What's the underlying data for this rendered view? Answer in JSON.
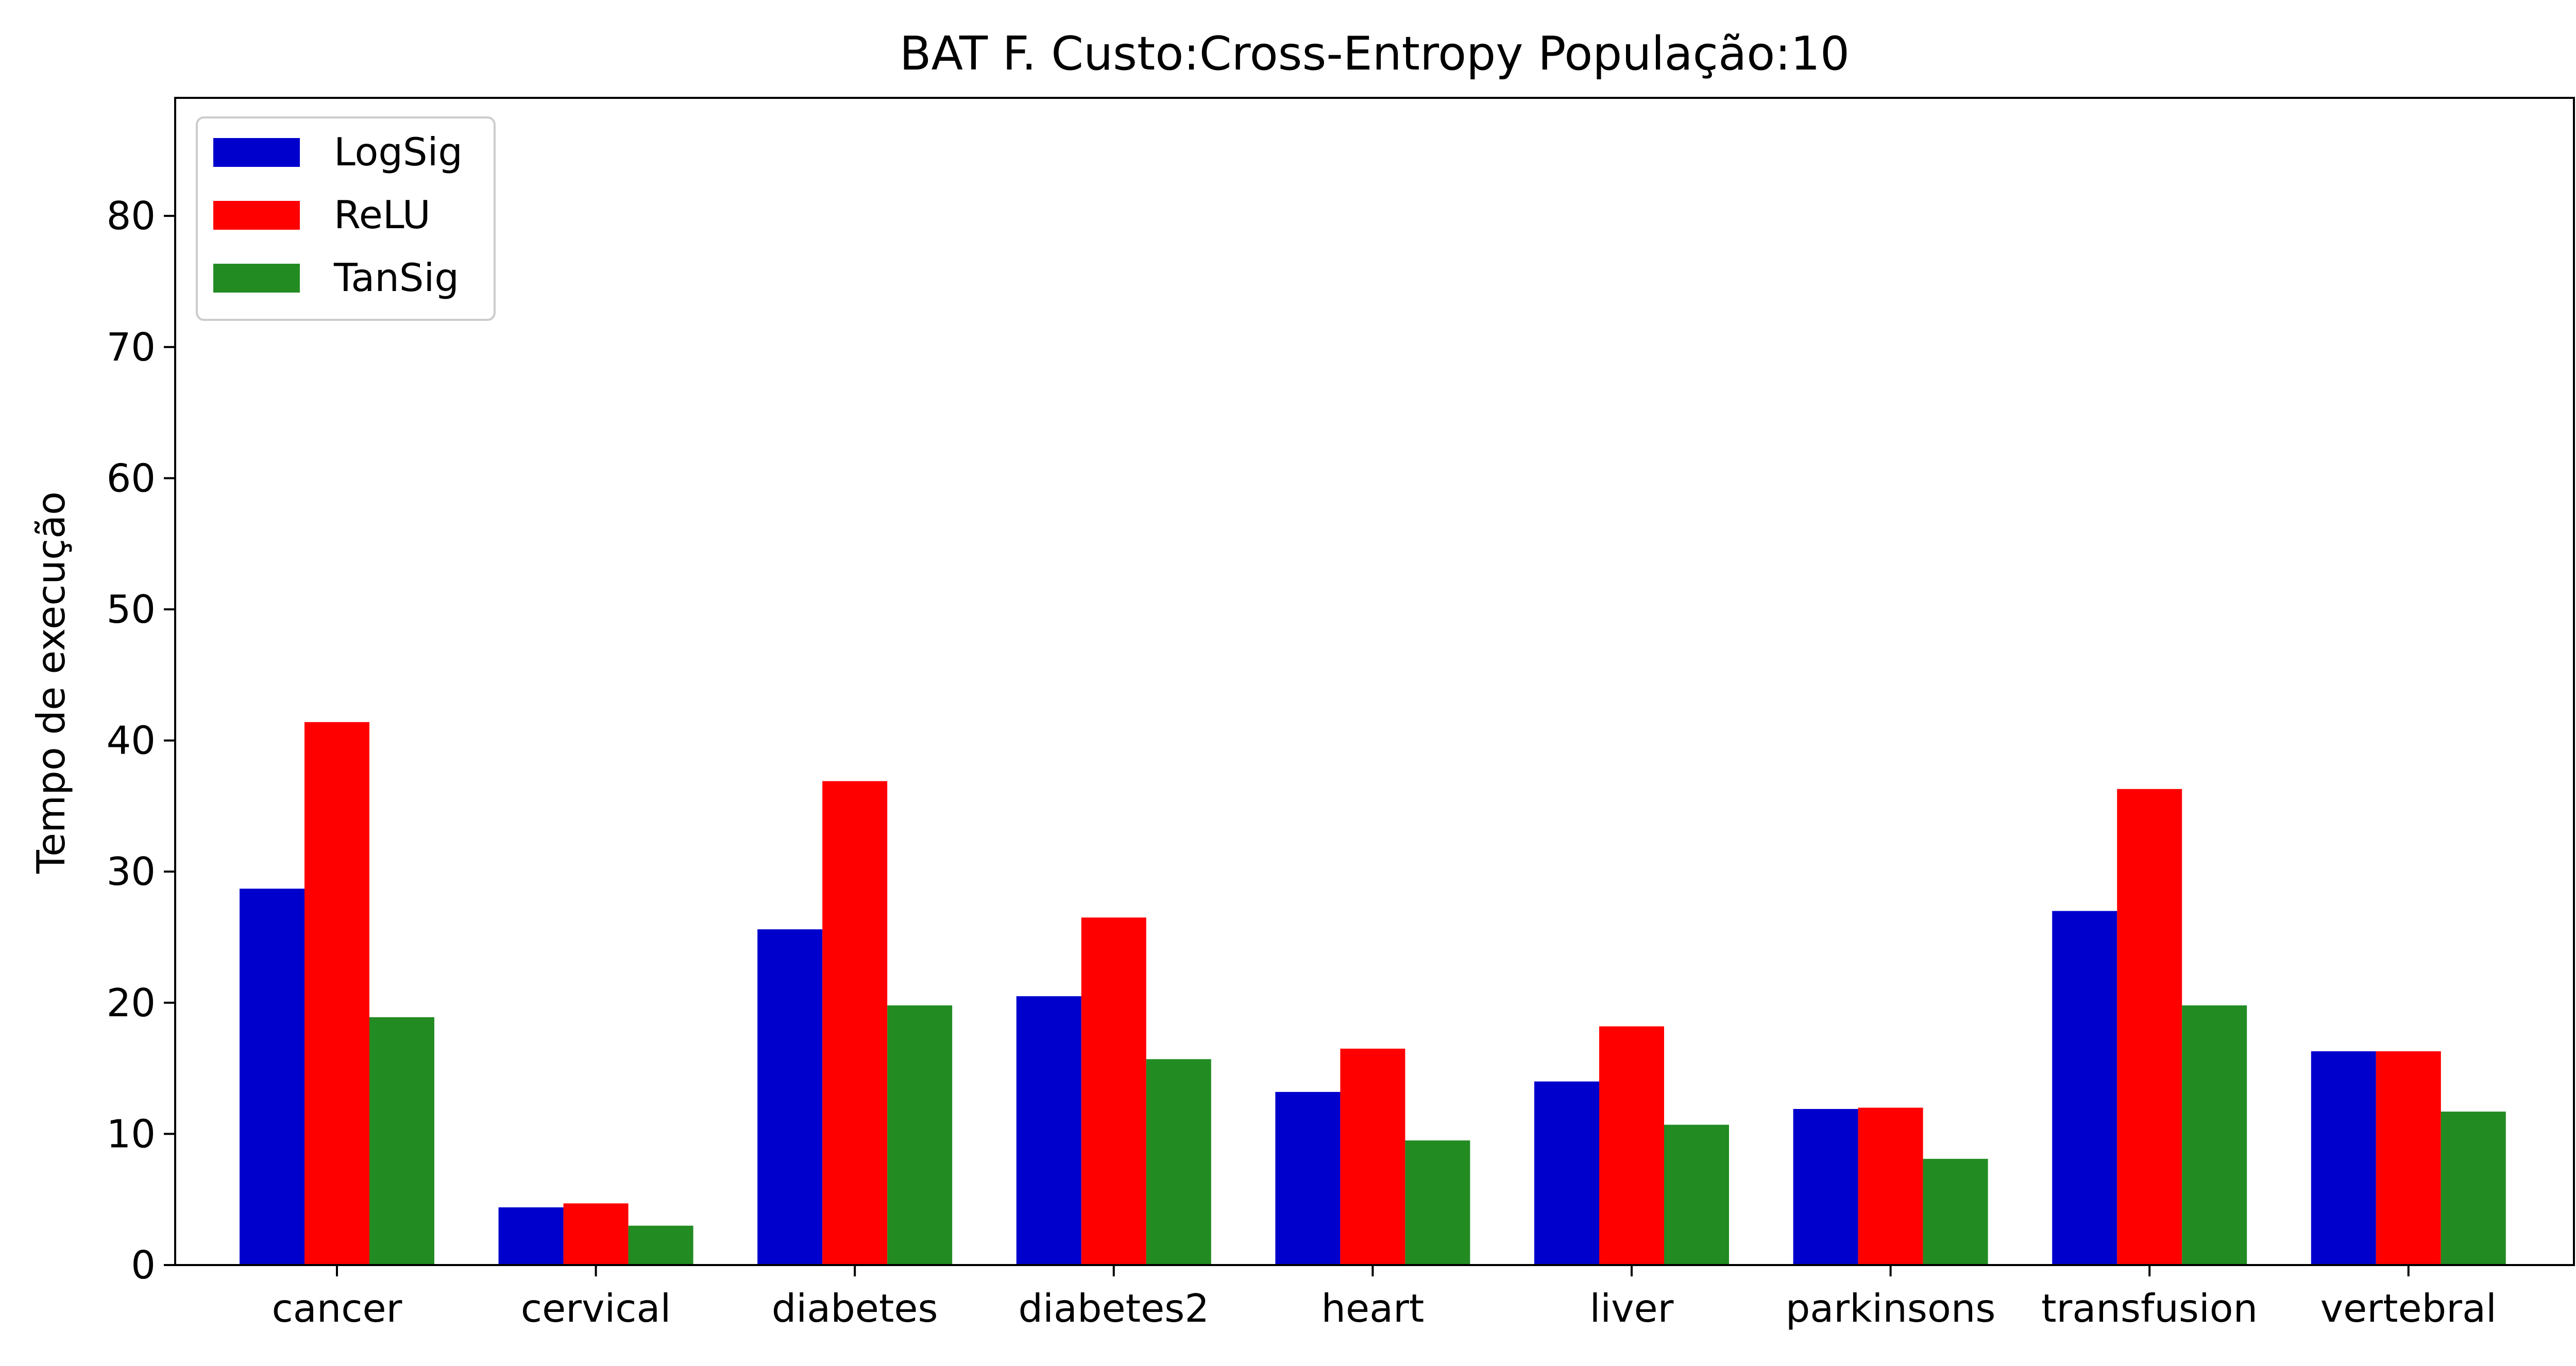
{
  "chart_data": {
    "type": "bar",
    "title": "BAT F. Custo:Cross-Entropy População:10",
    "xlabel": "",
    "ylabel": "Tempo de execução",
    "categories": [
      "cancer",
      "cervical",
      "diabetes",
      "diabetes2",
      "heart",
      "liver",
      "parkinsons",
      "transfusion",
      "vertebral"
    ],
    "series": [
      {
        "name": "LogSig",
        "color": "#0000CD",
        "values": [
          28.7,
          4.4,
          25.6,
          20.5,
          13.2,
          14.0,
          11.9,
          27.0,
          16.3
        ]
      },
      {
        "name": "ReLU",
        "color": "#FF0000",
        "values": [
          41.4,
          4.7,
          36.9,
          26.5,
          16.5,
          18.2,
          12.0,
          36.3,
          16.3
        ]
      },
      {
        "name": "TanSig",
        "color": "#228B22",
        "values": [
          18.9,
          3.0,
          19.8,
          15.7,
          9.5,
          10.7,
          8.1,
          19.8,
          11.7
        ]
      }
    ],
    "ylim": [
      0,
      89
    ],
    "yticks": [
      0,
      10,
      20,
      30,
      40,
      50,
      60,
      70,
      80
    ],
    "grid": false,
    "legend_position": "top-left"
  }
}
